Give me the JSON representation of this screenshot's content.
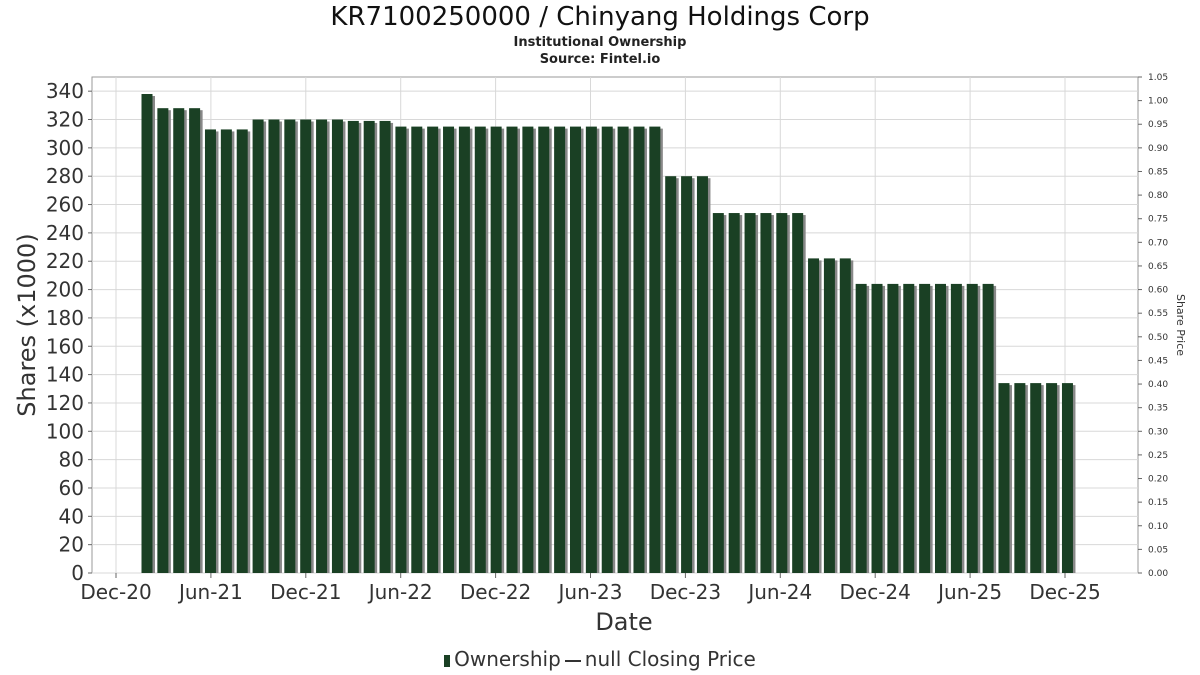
{
  "chart_data": {
    "type": "bar",
    "title": "KR7100250000 / Chinyang Holdings Corp",
    "subtitle": "Institutional Ownership",
    "source": "Source: Fintel.io",
    "xlabel": "Date",
    "ylabel": "Shares (x1000)",
    "y2label": "Share Price",
    "ylim": [
      0,
      350
    ],
    "y2lim": [
      0,
      1.05
    ],
    "yticks": [
      0,
      20,
      40,
      60,
      80,
      100,
      120,
      140,
      160,
      180,
      200,
      220,
      240,
      260,
      280,
      300,
      320,
      340
    ],
    "y2ticks": [
      "0.00",
      "0.05",
      "0.10",
      "0.15",
      "0.20",
      "0.25",
      "0.30",
      "0.35",
      "0.40",
      "0.45",
      "0.50",
      "0.55",
      "0.60",
      "0.65",
      "0.70",
      "0.75",
      "0.80",
      "0.85",
      "0.90",
      "0.95",
      "1.00",
      "1.05"
    ],
    "xticks": [
      "Dec-20",
      "Jun-21",
      "Dec-21",
      "Jun-22",
      "Dec-22",
      "Jun-23",
      "Dec-23",
      "Jun-24",
      "Dec-24",
      "Jun-25",
      "Dec-25"
    ],
    "series": [
      {
        "name": "Ownership",
        "values": [
          338,
          328,
          328,
          328,
          313,
          313,
          313,
          320,
          320,
          320,
          320,
          320,
          320,
          319,
          319,
          319,
          315,
          315,
          315,
          315,
          315,
          315,
          315,
          315,
          315,
          315,
          315,
          315,
          315,
          315,
          315,
          315,
          315,
          280,
          280,
          280,
          254,
          254,
          254,
          254,
          254,
          254,
          222,
          222,
          222,
          204,
          204,
          204,
          204,
          204,
          204,
          204,
          204,
          204,
          134,
          134,
          134,
          134,
          134
        ]
      }
    ],
    "legend": {
      "ownership_label": "Ownership",
      "price_label": "null Closing Price",
      "placement": "bottom"
    },
    "colors": {
      "bar": "#1a4024",
      "shadow": "#888888",
      "grid": "#d8d8d8"
    }
  }
}
